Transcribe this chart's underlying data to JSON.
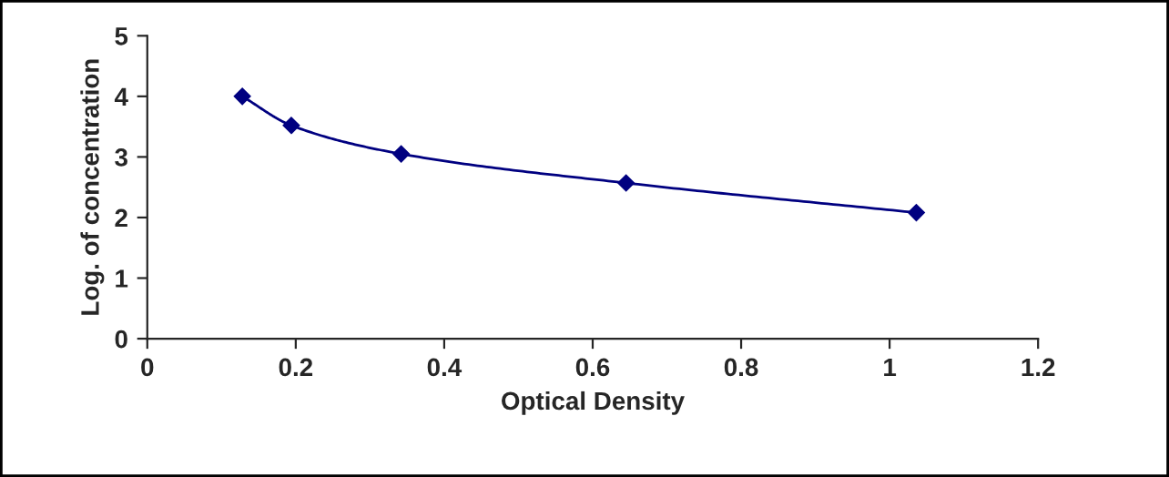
{
  "chart_data": {
    "type": "line",
    "xlabel": "Optical Density",
    "ylabel": "Log. of concentration",
    "x": [
      0.128,
      0.194,
      0.342,
      0.645,
      1.036
    ],
    "series": [
      {
        "color": "#000080",
        "values": [
          4.0,
          3.52,
          3.05,
          2.57,
          2.08
        ]
      }
    ],
    "marker": "diamond",
    "line_style": "solid",
    "grid": false,
    "legend": false,
    "xlim": [
      0,
      1.2
    ],
    "xticks": [
      0,
      0.2,
      0.4,
      0.6,
      0.8,
      1,
      1.2
    ],
    "ylim": [
      0,
      5
    ],
    "yticks": [
      0,
      1,
      2,
      3,
      4,
      5
    ]
  }
}
